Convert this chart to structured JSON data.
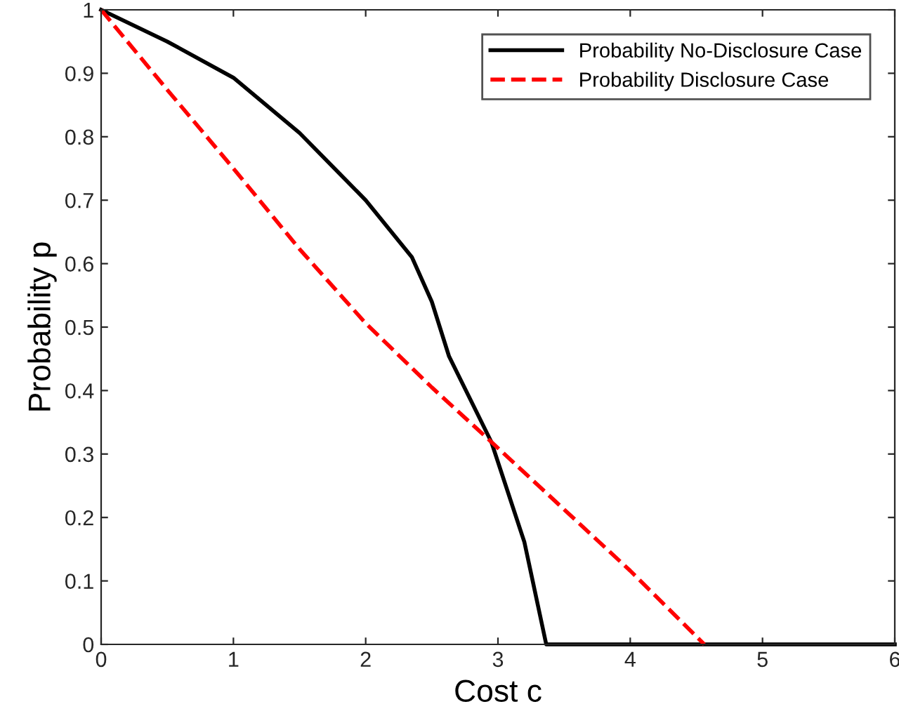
{
  "chart_data": {
    "type": "line",
    "xlabel": "Cost c",
    "ylabel": "Probability p",
    "xlim": [
      0,
      6
    ],
    "ylim": [
      0,
      1
    ],
    "xticks": [
      0,
      1,
      2,
      3,
      4,
      5,
      6
    ],
    "yticks": [
      0,
      0.1,
      0.2,
      0.3,
      0.4,
      0.5,
      0.6,
      0.7,
      0.8,
      0.9,
      1
    ],
    "grid": false,
    "legend": "top right",
    "series": [
      {
        "name": "Probability No-Disclosure Case",
        "color": "#000000",
        "line_style": "solid",
        "x": [
          0,
          0.5,
          1,
          1.5,
          2,
          2.35,
          2.5,
          2.63,
          2.95,
          3.2,
          3.365,
          4,
          5,
          6
        ],
        "values": [
          1,
          0.95,
          0.893,
          0.806,
          0.7,
          0.61,
          0.54,
          0.454,
          0.319,
          0.161,
          0,
          0,
          0,
          0
        ]
      },
      {
        "name": "Probability Disclosure Case",
        "color": "#ff0000",
        "line_style": "dashed",
        "x": [
          0,
          0.5,
          1,
          1.5,
          2,
          2.5,
          2.95,
          4,
          4.56
        ],
        "values": [
          1,
          0.874,
          0.75,
          0.623,
          0.506,
          0.405,
          0.319,
          0.116,
          0
        ]
      }
    ]
  }
}
